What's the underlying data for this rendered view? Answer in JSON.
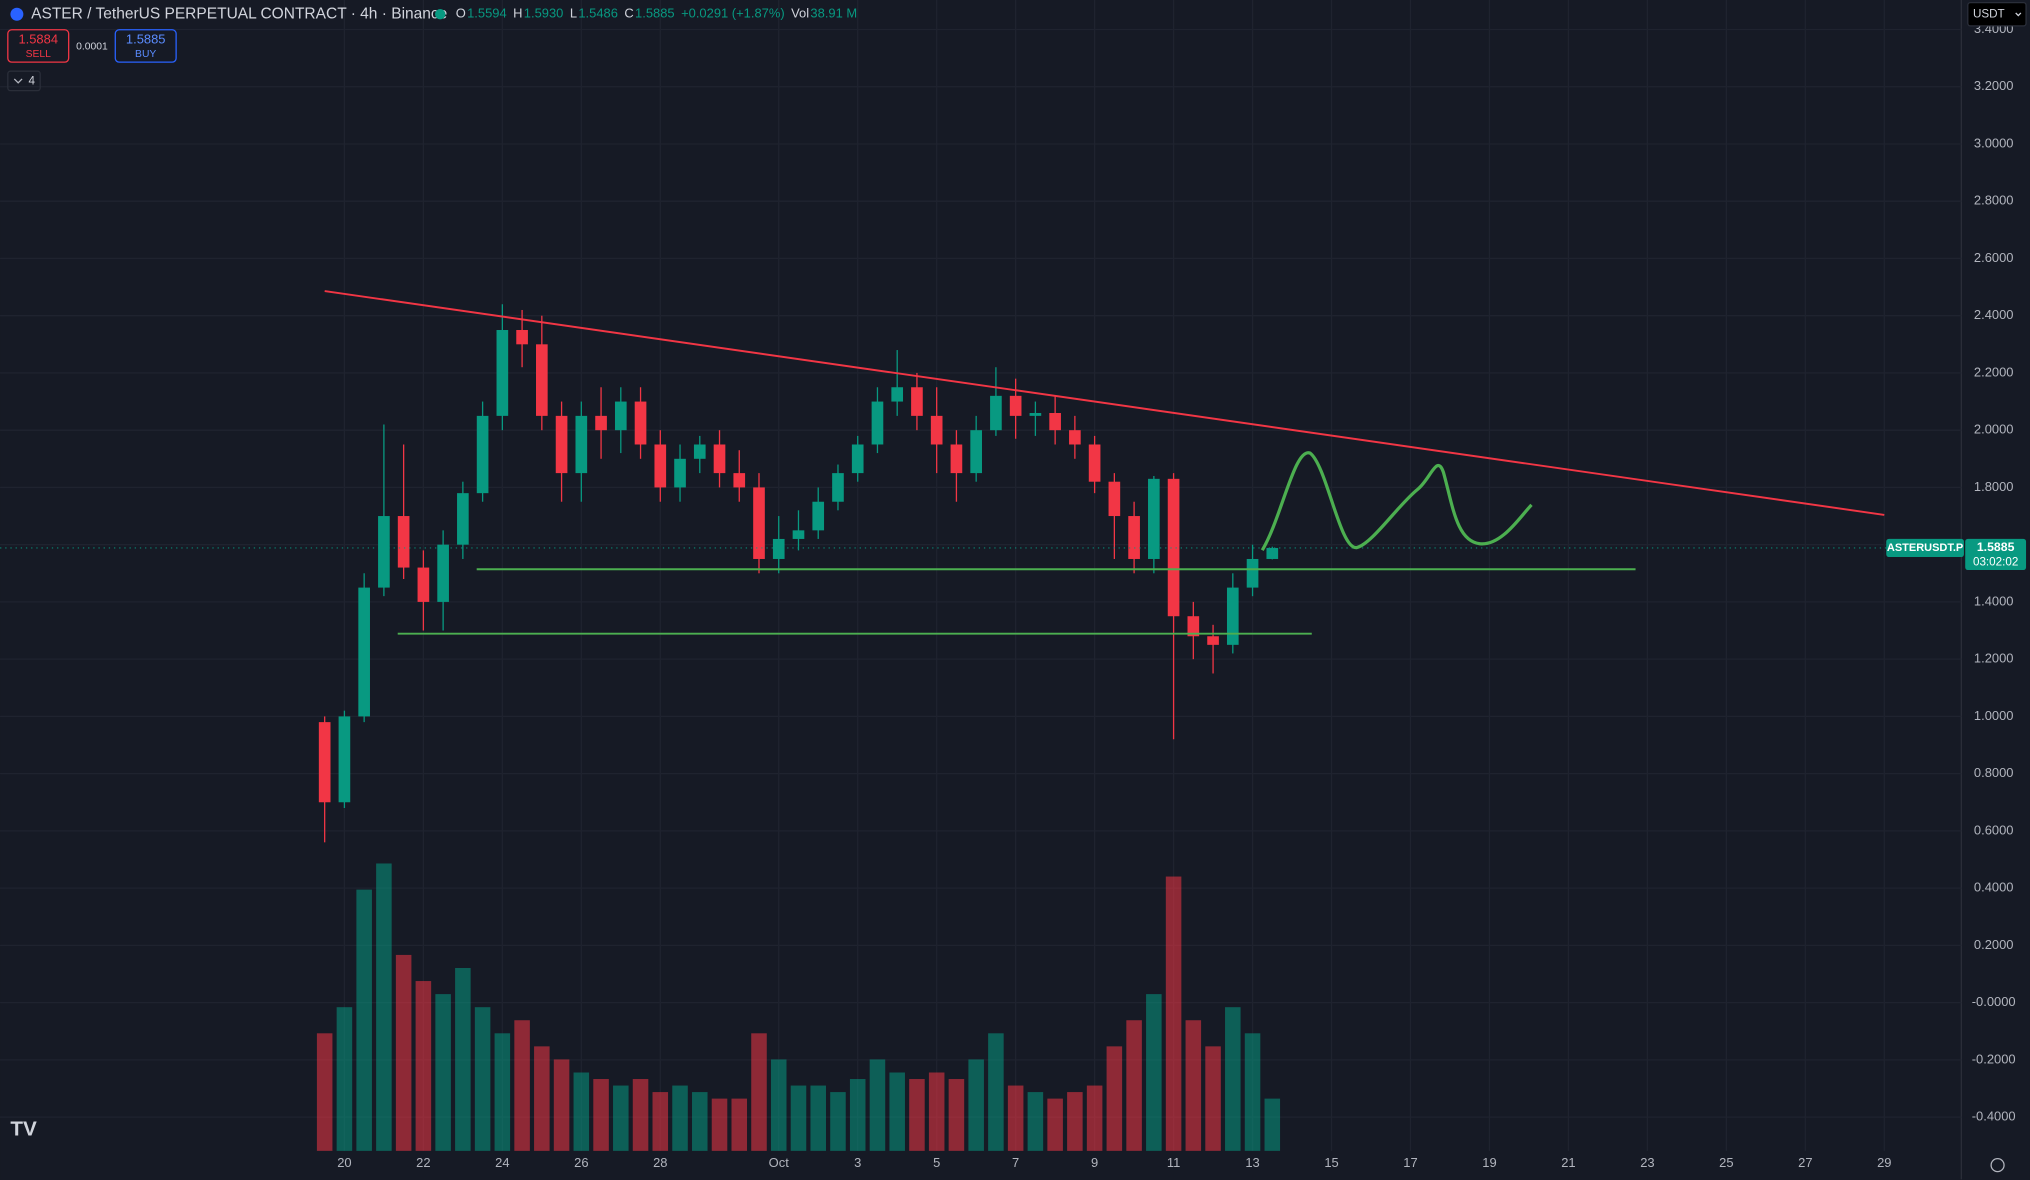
{
  "header": {
    "symbol": "ASTER / TetherUS PERPETUAL CONTRACT · 4h · Binance",
    "ohlc": [
      {
        "key": "O",
        "value": "1.5594"
      },
      {
        "key": "H",
        "value": "1.5930"
      },
      {
        "key": "L",
        "value": "1.5486"
      },
      {
        "key": "C",
        "value": "1.5885"
      }
    ],
    "change": "+0.0291 (+1.87%)",
    "vol_key": "Vol",
    "vol": "38.91 M"
  },
  "trade": {
    "sell_price": "1.5884",
    "sell": "SELL",
    "spread": "0.0001",
    "buy_price": "1.5885",
    "buy": "BUY"
  },
  "indicators": "4",
  "currency": "USDT",
  "chart_data": {
    "type": "candlestick",
    "up_color": "#089981",
    "down_color": "#f23645",
    "grid": true,
    "categories": [
      null,
      "20",
      null,
      null,
      null,
      "22",
      null,
      null,
      null,
      "24",
      null,
      null,
      null,
      "26",
      null,
      null,
      null,
      "28",
      null,
      null,
      null,
      null,
      null,
      "Oct",
      null,
      null,
      null,
      "3",
      null,
      null,
      null,
      "5",
      null,
      null,
      null,
      "7",
      null,
      null,
      null,
      "9",
      null,
      null,
      null,
      "11",
      null,
      null,
      null,
      "13",
      null,
      null,
      null,
      "15",
      null,
      null,
      null,
      "17",
      null,
      null,
      null,
      "19",
      null,
      null,
      null,
      "21",
      null,
      null,
      null,
      "23",
      null,
      null,
      null,
      "25",
      null,
      null,
      null,
      "27",
      null,
      null,
      null,
      "29",
      null,
      null,
      null
    ],
    "open": [
      0.98,
      0.7,
      1.0,
      1.45,
      1.7,
      1.52,
      1.4,
      1.6,
      1.78,
      2.05,
      2.35,
      2.3,
      2.05,
      1.85,
      2.05,
      2.0,
      2.1,
      1.95,
      1.8,
      1.9,
      1.95,
      1.85,
      1.8,
      1.55,
      1.62,
      1.65,
      1.75,
      1.85,
      1.95,
      2.1,
      2.15,
      2.05,
      1.95,
      1.85,
      2.0,
      2.12,
      2.05,
      2.06,
      2.0,
      1.95,
      1.82,
      1.7,
      1.55,
      1.83,
      1.35,
      1.28,
      1.25,
      1.45,
      1.55,
      null,
      null,
      null,
      null,
      null,
      null,
      null,
      null,
      null,
      null,
      null,
      null,
      null,
      null,
      null,
      null,
      null,
      null,
      null,
      null,
      null,
      null,
      null,
      null,
      null,
      null,
      null,
      null,
      null,
      null,
      null,
      null,
      null,
      null
    ],
    "high": [
      1.0,
      1.02,
      1.5,
      2.02,
      1.95,
      1.58,
      1.65,
      1.82,
      2.1,
      2.44,
      2.42,
      2.4,
      2.1,
      2.1,
      2.15,
      2.15,
      2.15,
      2.0,
      1.95,
      1.98,
      2.0,
      1.93,
      1.85,
      1.7,
      1.72,
      1.8,
      1.88,
      1.98,
      2.15,
      2.28,
      2.2,
      2.15,
      2.0,
      2.05,
      2.22,
      2.18,
      2.1,
      2.12,
      2.05,
      1.98,
      1.85,
      1.75,
      1.84,
      1.85,
      1.4,
      1.32,
      1.5,
      1.6,
      1.593,
      null,
      null,
      null,
      null,
      null,
      null,
      null,
      null,
      null,
      null,
      null,
      null,
      null,
      null,
      null,
      null,
      null,
      null,
      null,
      null,
      null,
      null,
      null,
      null,
      null,
      null,
      null,
      null,
      null,
      null,
      null,
      null,
      null,
      null
    ],
    "low": [
      0.56,
      0.68,
      0.98,
      1.42,
      1.48,
      1.3,
      1.3,
      1.55,
      1.75,
      2.0,
      2.22,
      2.0,
      1.75,
      1.75,
      1.9,
      1.92,
      1.9,
      1.75,
      1.75,
      1.85,
      1.8,
      1.75,
      1.5,
      1.5,
      1.58,
      1.62,
      1.72,
      1.82,
      1.92,
      2.05,
      2.0,
      1.85,
      1.75,
      1.82,
      1.98,
      1.97,
      1.98,
      1.95,
      1.9,
      1.78,
      1.55,
      1.5,
      1.5,
      0.92,
      1.2,
      1.15,
      1.22,
      1.42,
      1.5486,
      null,
      null,
      null,
      null,
      null,
      null,
      null,
      null,
      null,
      null,
      null,
      null,
      null,
      null,
      null,
      null,
      null,
      null,
      null,
      null,
      null,
      null,
      null,
      null,
      null,
      null,
      null,
      null,
      null,
      null,
      null,
      null,
      null,
      null
    ],
    "close": [
      0.7,
      1.0,
      1.45,
      1.7,
      1.52,
      1.4,
      1.6,
      1.78,
      2.05,
      2.35,
      2.3,
      2.05,
      1.85,
      2.05,
      2.0,
      2.1,
      1.95,
      1.8,
      1.9,
      1.95,
      1.85,
      1.8,
      1.55,
      1.62,
      1.65,
      1.75,
      1.85,
      1.95,
      2.1,
      2.15,
      2.05,
      1.95,
      1.85,
      2.0,
      2.12,
      2.05,
      2.06,
      2.0,
      1.95,
      1.82,
      1.7,
      1.55,
      1.83,
      1.35,
      1.28,
      1.25,
      1.45,
      1.55,
      1.5885,
      null,
      null,
      null,
      null,
      null,
      null,
      null,
      null,
      null,
      null,
      null,
      null,
      null,
      null,
      null,
      null,
      null,
      null,
      null,
      null,
      null,
      null,
      null,
      null,
      null,
      null,
      null,
      null,
      null,
      null,
      null,
      null,
      null,
      null
    ],
    "volume": [
      90,
      110,
      200,
      220,
      150,
      130,
      120,
      140,
      110,
      90,
      100,
      80,
      70,
      60,
      55,
      50,
      55,
      45,
      50,
      45,
      40,
      40,
      90,
      70,
      50,
      50,
      45,
      55,
      70,
      60,
      55,
      60,
      55,
      70,
      90,
      50,
      45,
      40,
      45,
      50,
      80,
      100,
      120,
      210,
      100,
      80,
      110,
      90,
      40,
      null,
      null,
      null,
      null,
      null,
      null,
      null,
      null,
      null,
      null,
      null,
      null,
      null,
      null,
      null,
      null,
      null,
      null,
      null,
      null,
      null,
      null,
      null,
      null,
      null,
      null,
      null,
      null,
      null,
      null,
      null,
      null,
      null,
      null
    ],
    "ylim": [
      -0.518,
      3.503
    ],
    "yticks": [
      {
        "value": 3.4,
        "label": "3.4000"
      },
      {
        "value": 3.2,
        "label": "3.2000"
      },
      {
        "value": 3.0,
        "label": "3.0000"
      },
      {
        "value": 2.8,
        "label": "2.8000"
      },
      {
        "value": 2.6,
        "label": "2.6000"
      },
      {
        "value": 2.4,
        "label": "2.4000"
      },
      {
        "value": 2.2,
        "label": "2.2000"
      },
      {
        "value": 2.0,
        "label": "2.0000"
      },
      {
        "value": 1.8,
        "label": "1.8000"
      },
      {
        "value": 1.6,
        "label": "1.6000"
      },
      {
        "value": 1.4,
        "label": "1.4000"
      },
      {
        "value": 1.2,
        "label": "1.2000"
      },
      {
        "value": 1.0,
        "label": "1.0000"
      },
      {
        "value": 0.8,
        "label": "0.8000"
      },
      {
        "value": 0.6,
        "label": "0.6000"
      },
      {
        "value": 0.4,
        "label": "0.4000"
      },
      {
        "value": 0.2,
        "label": "0.2000"
      },
      {
        "value": 0,
        "label": "-0.0000"
      },
      {
        "value": -0.2,
        "label": "-0.2000"
      },
      {
        "value": -0.4,
        "label": "-0.4000"
      }
    ],
    "trendlines": [
      {
        "color": "#f23645",
        "points": [
          [
            0,
            2.486
          ],
          [
            79,
            1.704
          ]
        ]
      },
      {
        "color": "#4caf50",
        "points": [
          [
            7.7,
            1.514
          ],
          [
            66.4,
            1.514
          ]
        ]
      },
      {
        "color": "#4caf50",
        "points": [
          [
            3.7,
            1.289
          ],
          [
            50,
            1.289
          ]
        ]
      }
    ],
    "last_price": {
      "symbol": "ASTERUSDT.P",
      "value": 1.5885,
      "countdown": "03:02:02"
    }
  }
}
